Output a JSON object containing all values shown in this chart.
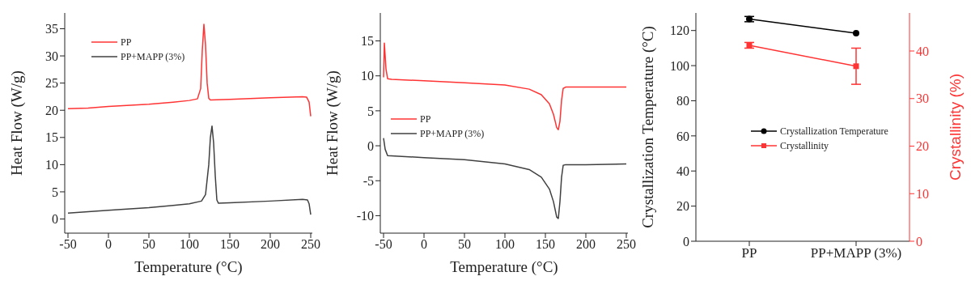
{
  "chart_data": [
    {
      "type": "line",
      "xlabel": "Temperature (°C)",
      "ylabel": "Heat Flow (W/g)",
      "xlim": [
        -54,
        252
      ],
      "xticks": [
        -50,
        0,
        50,
        100,
        150,
        200,
        250
      ],
      "ylim": [
        -2.6,
        37.9
      ],
      "yticks": [
        0,
        5,
        10,
        15,
        20,
        25,
        30,
        35
      ],
      "legend": "top left",
      "grid": false,
      "marker": "none",
      "series": [
        {
          "name": "PP",
          "color": "#ff3333",
          "x": [
            -50,
            -25,
            0,
            50,
            80,
            100,
            110,
            114,
            116,
            118,
            120,
            122,
            124,
            126,
            150,
            200,
            240,
            245,
            248,
            250
          ],
          "values": [
            20.3,
            20.4,
            20.7,
            21.1,
            21.5,
            21.8,
            22.1,
            24,
            31,
            35.8,
            32,
            25,
            22.2,
            21.9,
            22,
            22.3,
            22.5,
            22.4,
            21.5,
            18.9
          ]
        },
        {
          "name": "PP+MAPP (3%)",
          "color": "#404040",
          "x": [
            -50,
            0,
            50,
            80,
            100,
            115,
            120,
            124,
            126,
            128,
            130,
            132,
            134,
            136,
            150,
            200,
            240,
            246,
            248,
            250
          ],
          "values": [
            1.1,
            1.6,
            2.1,
            2.5,
            2.8,
            3.3,
            4.5,
            10,
            15,
            17.1,
            14,
            8,
            3.5,
            2.9,
            3,
            3.3,
            3.6,
            3.5,
            2.8,
            0.8
          ]
        }
      ]
    },
    {
      "type": "line",
      "xlabel": "Temperature (°C)",
      "ylabel": "Heat Flow (W/g)",
      "xlim": [
        -54,
        252
      ],
      "xticks": [
        -50,
        0,
        50,
        100,
        150,
        200,
        250
      ],
      "ylim": [
        -12.5,
        19
      ],
      "yticks": [
        -10,
        -5,
        0,
        5,
        10,
        15
      ],
      "legend": "left",
      "grid": false,
      "marker": "none",
      "series": [
        {
          "name": "PP",
          "color": "#ff3333",
          "x": [
            -50,
            -49,
            -47,
            -45,
            -40,
            0,
            50,
            100,
            130,
            145,
            155,
            160,
            164,
            166,
            168,
            170,
            172,
            175,
            200,
            250
          ],
          "values": [
            9.8,
            14.7,
            11,
            9.6,
            9.5,
            9.3,
            9,
            8.7,
            8.1,
            7.3,
            6,
            4.5,
            2.6,
            2.3,
            3.5,
            6.5,
            8.2,
            8.4,
            8.4,
            8.4
          ]
        },
        {
          "name": "PP+MAPP (3%)",
          "color": "#404040",
          "x": [
            -50,
            -48,
            -45,
            0,
            50,
            100,
            130,
            145,
            155,
            160,
            164,
            166,
            168,
            170,
            172,
            175,
            200,
            250
          ],
          "values": [
            1.1,
            -0.5,
            -1.4,
            -1.7,
            -2,
            -2.6,
            -3.4,
            -4.5,
            -6.2,
            -8,
            -10.2,
            -10.4,
            -8,
            -4.5,
            -2.8,
            -2.7,
            -2.7,
            -2.6
          ]
        }
      ]
    },
    {
      "type": "line",
      "categories": [
        "PP",
        "PP+MAPP (3%)"
      ],
      "ylabel": "Crystallization Temperature (°C)",
      "y2label": "Crystallinity (%)",
      "ylim": [
        0,
        130
      ],
      "yticks": [
        0,
        20,
        40,
        60,
        80,
        100,
        120
      ],
      "y2lim": [
        0,
        48
      ],
      "y2ticks": [
        0,
        10,
        20,
        30,
        40
      ],
      "legend": "center",
      "grid": false,
      "series": [
        {
          "name": "Crystallization Temperature",
          "color": "#000000",
          "marker": "circle",
          "values": [
            126.5,
            118.5
          ],
          "errors": [
            1.5,
            null
          ]
        },
        {
          "name": "Crystallinity",
          "color": "#ff3333",
          "marker": "square",
          "axis": "y2",
          "values": [
            41.2,
            36.8
          ],
          "errors": [
            0.6,
            [
              33,
              40.6
            ]
          ]
        }
      ]
    }
  ]
}
